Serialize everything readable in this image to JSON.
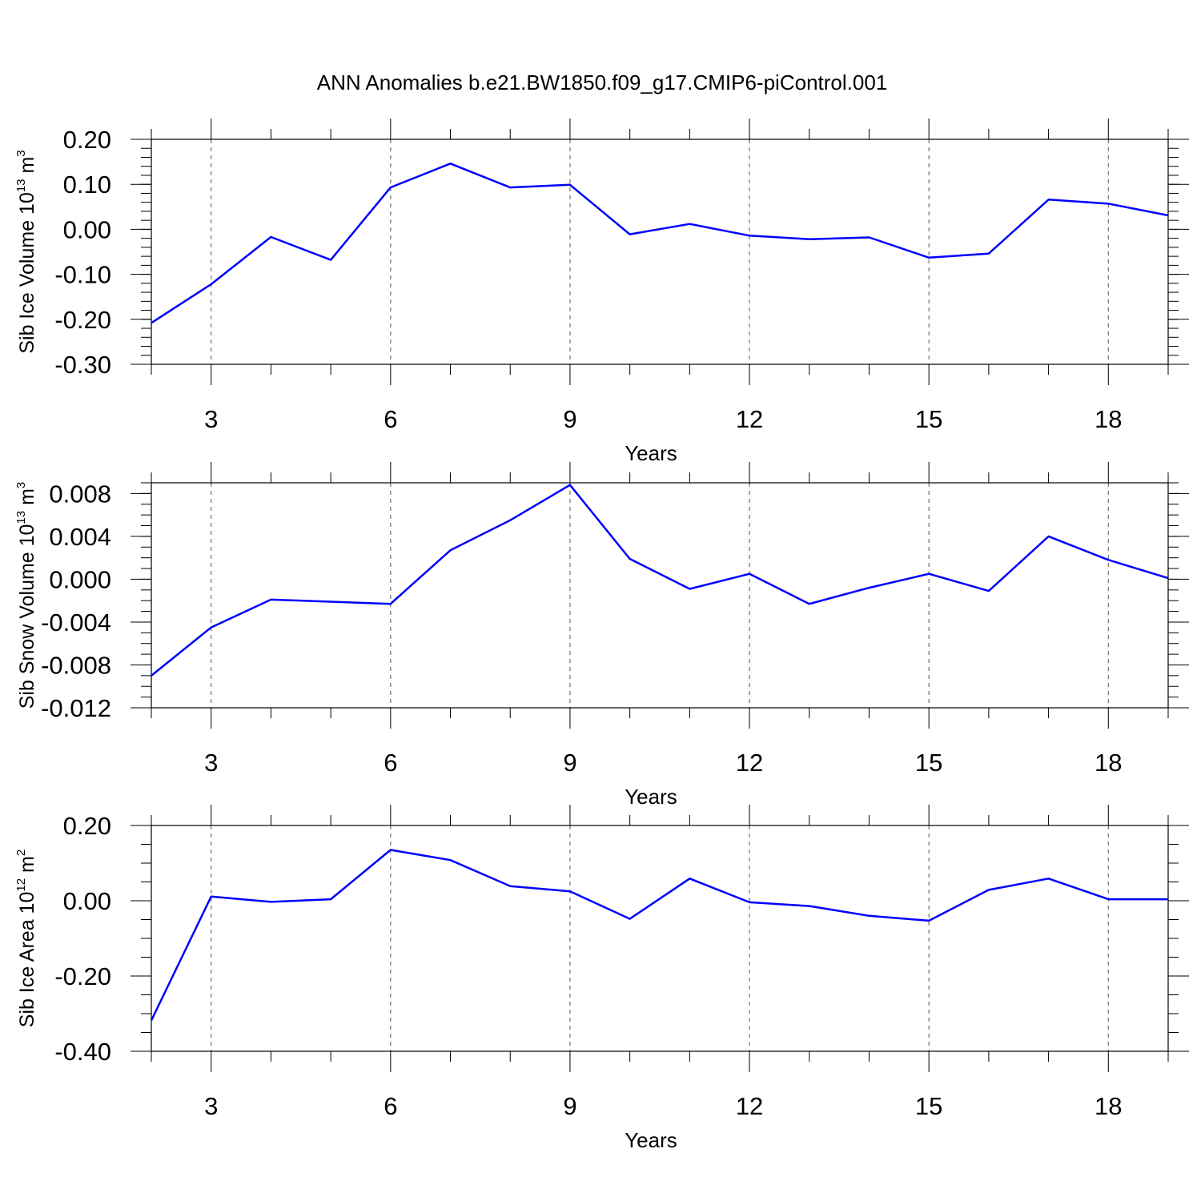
{
  "figure": {
    "title": "ANN Anomalies b.e21.BW1850.f09_g17.CMIP6-piControl.001",
    "line_color": "#0000ff",
    "grid_color": "#555555"
  },
  "chart_data": [
    {
      "type": "line",
      "ylabel": {
        "main": "Sib Ice Volume 10",
        "sup": "13",
        "unit": " m",
        "unit_sup": "3"
      },
      "xlabel": "Years",
      "xlim": [
        2,
        19
      ],
      "ylim": [
        -0.3,
        0.2
      ],
      "x_major_ticks": [
        3,
        6,
        9,
        12,
        15,
        18
      ],
      "x_major_labels": [
        "3",
        "6",
        "9",
        "12",
        "15",
        "18"
      ],
      "y_major_ticks": [
        0.2,
        0.1,
        0.0,
        -0.1,
        -0.2,
        -0.3
      ],
      "y_major_labels": [
        "0.20",
        "0.10",
        "0.00",
        "-0.10",
        "-0.20",
        "-0.30"
      ],
      "y_minor_step": 0.02,
      "grid": "dashed vertical at x major ticks",
      "x": [
        2,
        3,
        4,
        5,
        6,
        7,
        8,
        9,
        10,
        11,
        12,
        13,
        14,
        15,
        16,
        17,
        18,
        19
      ],
      "values": [
        -0.208,
        -0.122,
        -0.017,
        -0.068,
        0.093,
        0.146,
        0.093,
        0.099,
        -0.011,
        0.012,
        -0.014,
        -0.022,
        -0.018,
        -0.063,
        -0.054,
        0.066,
        0.057,
        0.031
      ]
    },
    {
      "type": "line",
      "ylabel": {
        "main": "Sib Snow Volume 10",
        "sup": "13",
        "unit": " m",
        "unit_sup": "3"
      },
      "xlabel": "Years",
      "xlim": [
        2,
        19
      ],
      "ylim": [
        -0.012,
        0.009
      ],
      "x_major_ticks": [
        3,
        6,
        9,
        12,
        15,
        18
      ],
      "x_major_labels": [
        "3",
        "6",
        "9",
        "12",
        "15",
        "18"
      ],
      "y_major_ticks": [
        0.008,
        0.004,
        0.0,
        -0.004,
        -0.008,
        -0.012
      ],
      "y_major_labels": [
        "0.008",
        "0.004",
        "0.000",
        "-0.004",
        "-0.008",
        "-0.012"
      ],
      "y_minor_step": 0.001,
      "grid": "dashed vertical at x major ticks",
      "x": [
        2,
        3,
        4,
        5,
        6,
        7,
        8,
        9,
        10,
        11,
        12,
        13,
        14,
        15,
        16,
        17,
        18,
        19
      ],
      "values": [
        -0.009,
        -0.0045,
        -0.0019,
        -0.0021,
        -0.0023,
        0.0027,
        0.0055,
        0.0088,
        0.0019,
        -0.0009,
        0.0005,
        -0.0023,
        -0.0008,
        0.0005,
        -0.0011,
        0.004,
        0.0018,
        0.0001
      ]
    },
    {
      "type": "line",
      "ylabel": {
        "main": "Sib Ice Area 10",
        "sup": "12",
        "unit": " m",
        "unit_sup": "2"
      },
      "xlabel": "Years",
      "xlim": [
        2,
        19
      ],
      "ylim": [
        -0.4,
        0.2
      ],
      "x_major_ticks": [
        3,
        6,
        9,
        12,
        15,
        18
      ],
      "x_major_labels": [
        "3",
        "6",
        "9",
        "12",
        "15",
        "18"
      ],
      "y_major_ticks": [
        0.2,
        0.0,
        -0.2,
        -0.4
      ],
      "y_major_labels": [
        "0.20",
        "0.00",
        "-0.20",
        "-0.40"
      ],
      "y_minor_step": 0.05,
      "grid": "dashed vertical at x major ticks",
      "x": [
        2,
        3,
        4,
        5,
        6,
        7,
        8,
        9,
        10,
        11,
        12,
        13,
        14,
        15,
        16,
        17,
        18,
        19
      ],
      "values": [
        -0.318,
        0.011,
        -0.003,
        0.004,
        0.135,
        0.108,
        0.039,
        0.025,
        -0.048,
        0.059,
        -0.004,
        -0.014,
        -0.04,
        -0.053,
        0.029,
        0.059,
        0.004,
        0.004
      ]
    }
  ]
}
